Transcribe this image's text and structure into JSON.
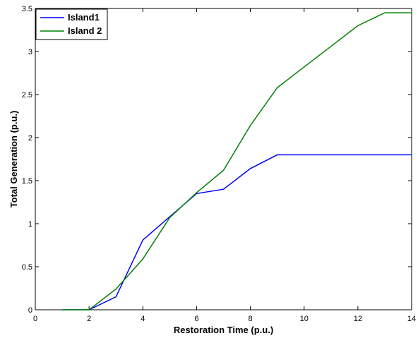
{
  "chart_data": {
    "type": "line",
    "title": "",
    "xlabel": "Restoration Time (p.u.)",
    "ylabel": "Total Generation (p.u.)",
    "xlim": [
      0,
      14
    ],
    "ylim": [
      0,
      3.5
    ],
    "xticks": [
      0,
      2,
      4,
      6,
      8,
      10,
      12,
      14
    ],
    "yticks": [
      0,
      0.5,
      1,
      1.5,
      2,
      2.5,
      3,
      3.5
    ],
    "xtick_labels": [
      "0",
      "2",
      "4",
      "6",
      "8",
      "10",
      "12",
      "14"
    ],
    "ytick_labels": [
      "0",
      "0.5",
      "1",
      "1.5",
      "2",
      "2.5",
      "3",
      "3.5"
    ],
    "grid": false,
    "legend_position": "top-left",
    "series": [
      {
        "name": "Island1",
        "color": "#0000ff",
        "x": [
          1,
          2,
          3,
          4,
          5,
          6,
          7,
          8,
          9,
          10,
          11,
          12,
          13,
          14
        ],
        "y": [
          0,
          0,
          0.15,
          0.81,
          1.08,
          1.35,
          1.4,
          1.64,
          1.8,
          1.8,
          1.8,
          1.8,
          1.8,
          1.8
        ]
      },
      {
        "name": "Island 2",
        "color": "#008000",
        "x": [
          1,
          2,
          3,
          4,
          5,
          6,
          7,
          8,
          9,
          10,
          11,
          12,
          13,
          14
        ],
        "y": [
          0,
          0,
          0.24,
          0.59,
          1.07,
          1.36,
          1.62,
          2.14,
          2.58,
          2.82,
          3.06,
          3.3,
          3.45,
          3.45
        ]
      }
    ]
  }
}
